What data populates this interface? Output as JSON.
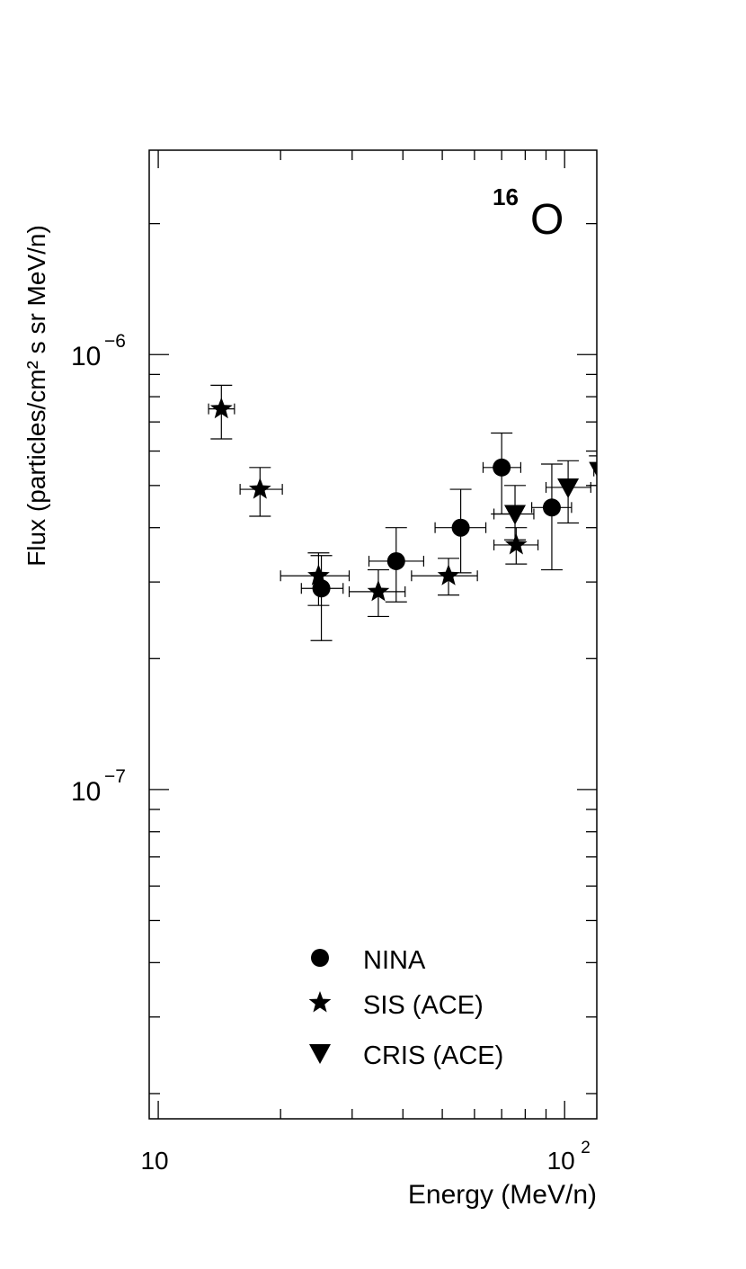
{
  "chart_data": {
    "type": "scatter",
    "title": "",
    "annotation": {
      "mass": "16",
      "element": "O"
    },
    "xlabel": "Energy (MeV/n)",
    "ylabel": "Flux (particles/cm² s sr MeV/n)",
    "xscale": "log",
    "yscale": "log",
    "xlim": [
      9.5,
      120
    ],
    "ylim": [
      1.75e-08,
      2.95e-06
    ],
    "x_ticks": [
      {
        "value": 10,
        "base": "10",
        "exp": ""
      },
      {
        "value": 100,
        "base": "10",
        "exp": "2"
      }
    ],
    "y_ticks": [
      {
        "value": 1e-06,
        "base": "10",
        "exp": "−6"
      },
      {
        "value": 1e-07,
        "base": "10",
        "exp": "−7"
      }
    ],
    "legend_position": "bottom-center",
    "series": [
      {
        "name": "NINA",
        "marker": "circle",
        "points": [
          {
            "x": 25.2,
            "y": 2.9e-07,
            "xlo": 22.5,
            "xhi": 28.5,
            "ylo": 2.2e-07,
            "yhi": 3.45e-07
          },
          {
            "x": 38.5,
            "y": 3.35e-07,
            "xlo": 33.0,
            "xhi": 45.0,
            "ylo": 2.7e-07,
            "yhi": 4e-07
          },
          {
            "x": 55.5,
            "y": 4e-07,
            "xlo": 48.0,
            "xhi": 64.0,
            "ylo": 3.15e-07,
            "yhi": 4.9e-07
          },
          {
            "x": 70.0,
            "y": 5.5e-07,
            "xlo": 63.0,
            "xhi": 78.0,
            "ylo": 4.3e-07,
            "yhi": 6.6e-07
          },
          {
            "x": 93.0,
            "y": 4.45e-07,
            "xlo": 83.0,
            "xhi": 104.0,
            "ylo": 3.2e-07,
            "yhi": 5.6e-07
          }
        ]
      },
      {
        "name": "SIS (ACE)",
        "marker": "star",
        "points": [
          {
            "x": 14.3,
            "y": 7.5e-07,
            "xlo": 13.3,
            "xhi": 15.4,
            "ylo": 6.4e-07,
            "yhi": 8.5e-07
          },
          {
            "x": 17.8,
            "y": 4.9e-07,
            "xlo": 15.9,
            "xhi": 20.2,
            "ylo": 4.25e-07,
            "yhi": 5.5e-07
          },
          {
            "x": 24.8,
            "y": 3.1e-07,
            "xlo": 20.0,
            "xhi": 29.5,
            "ylo": 2.65e-07,
            "yhi": 3.5e-07
          },
          {
            "x": 34.8,
            "y": 2.85e-07,
            "xlo": 29.5,
            "xhi": 40.5,
            "ylo": 2.5e-07,
            "yhi": 3.2e-07
          },
          {
            "x": 51.8,
            "y": 3.1e-07,
            "xlo": 42.0,
            "xhi": 61.0,
            "ylo": 2.8e-07,
            "yhi": 3.4e-07
          },
          {
            "x": 76.0,
            "y": 3.65e-07,
            "xlo": 67.0,
            "xhi": 86.0,
            "ylo": 3.3e-07,
            "yhi": 4e-07
          }
        ]
      },
      {
        "name": "CRIS (ACE)",
        "marker": "triangle-down",
        "points": [
          {
            "x": 75.5,
            "y": 4.3e-07,
            "xlo": 67.0,
            "xhi": 84.0,
            "ylo": 3.75e-07,
            "yhi": 5e-07
          },
          {
            "x": 102.0,
            "y": 4.95e-07,
            "xlo": 90.0,
            "xhi": 116.0,
            "ylo": 4.1e-07,
            "yhi": 5.7e-07
          },
          {
            "x": 122.0,
            "y": 5.4e-07,
            "xlo": 118.0,
            "xhi": 130.0,
            "ylo": 5e-07,
            "yhi": 5.85e-07
          }
        ]
      }
    ]
  }
}
